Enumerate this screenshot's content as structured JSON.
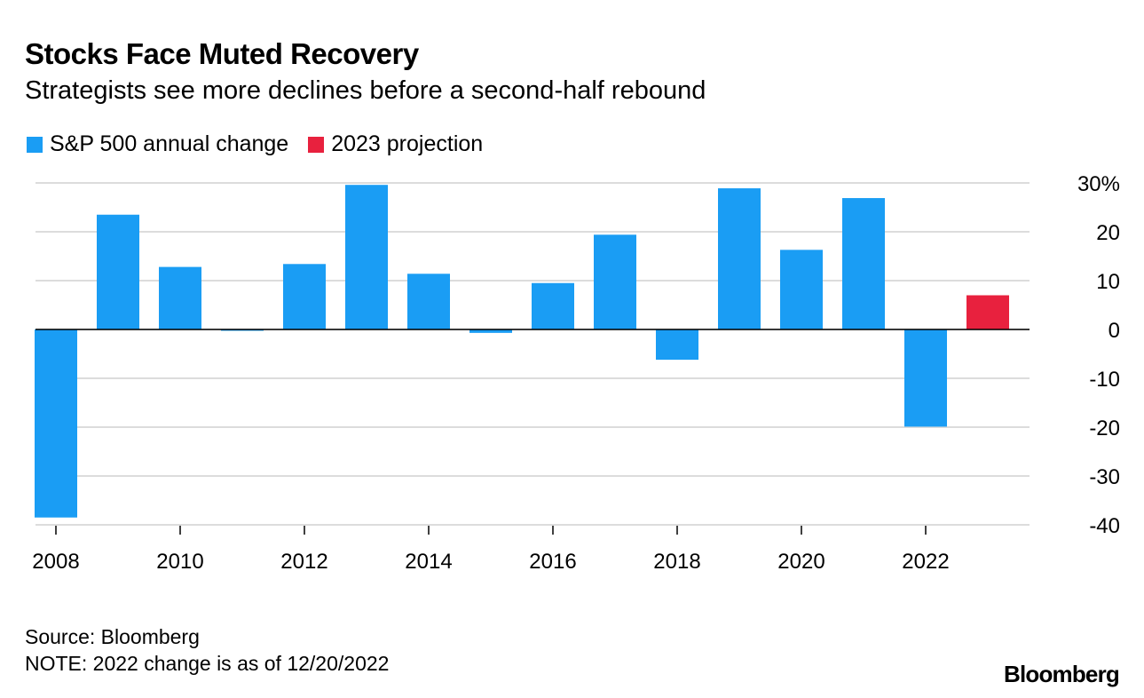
{
  "chart_data": {
    "type": "bar",
    "title": "Stocks Face Muted Recovery",
    "subtitle": "Strategists see more declines before a second-half rebound",
    "categories": [
      "2008",
      "2009",
      "2010",
      "2011",
      "2012",
      "2013",
      "2014",
      "2015",
      "2016",
      "2017",
      "2018",
      "2019",
      "2020",
      "2021",
      "2022",
      "2023"
    ],
    "series": [
      {
        "name": "S&P 500 annual change",
        "color": "#1a9df4",
        "values": [
          -38.5,
          23.5,
          12.8,
          0.0,
          13.4,
          29.6,
          11.4,
          -0.7,
          9.5,
          19.4,
          -6.2,
          28.9,
          16.3,
          26.9,
          -19.9,
          null
        ]
      },
      {
        "name": "2023 projection",
        "color": "#e8213e",
        "values": [
          null,
          null,
          null,
          null,
          null,
          null,
          null,
          null,
          null,
          null,
          null,
          null,
          null,
          null,
          null,
          7.0
        ]
      }
    ],
    "x_tick_labels": [
      "2008",
      "2010",
      "2012",
      "2014",
      "2016",
      "2018",
      "2020",
      "2022"
    ],
    "y_ticks": [
      30,
      20,
      10,
      0,
      -10,
      -20,
      -30,
      -40
    ],
    "y_tick_labels": [
      "30%",
      "20",
      "10",
      "0",
      "-10",
      "-20",
      "-30",
      "-40"
    ],
    "ylim": [
      -40,
      30
    ],
    "grid": true,
    "legend": "top-left",
    "xlabel": "",
    "ylabel": ""
  },
  "footer": {
    "source": "Source: Bloomberg",
    "note": "NOTE: 2022 change is as of 12/20/2022",
    "logo": "Bloomberg"
  }
}
